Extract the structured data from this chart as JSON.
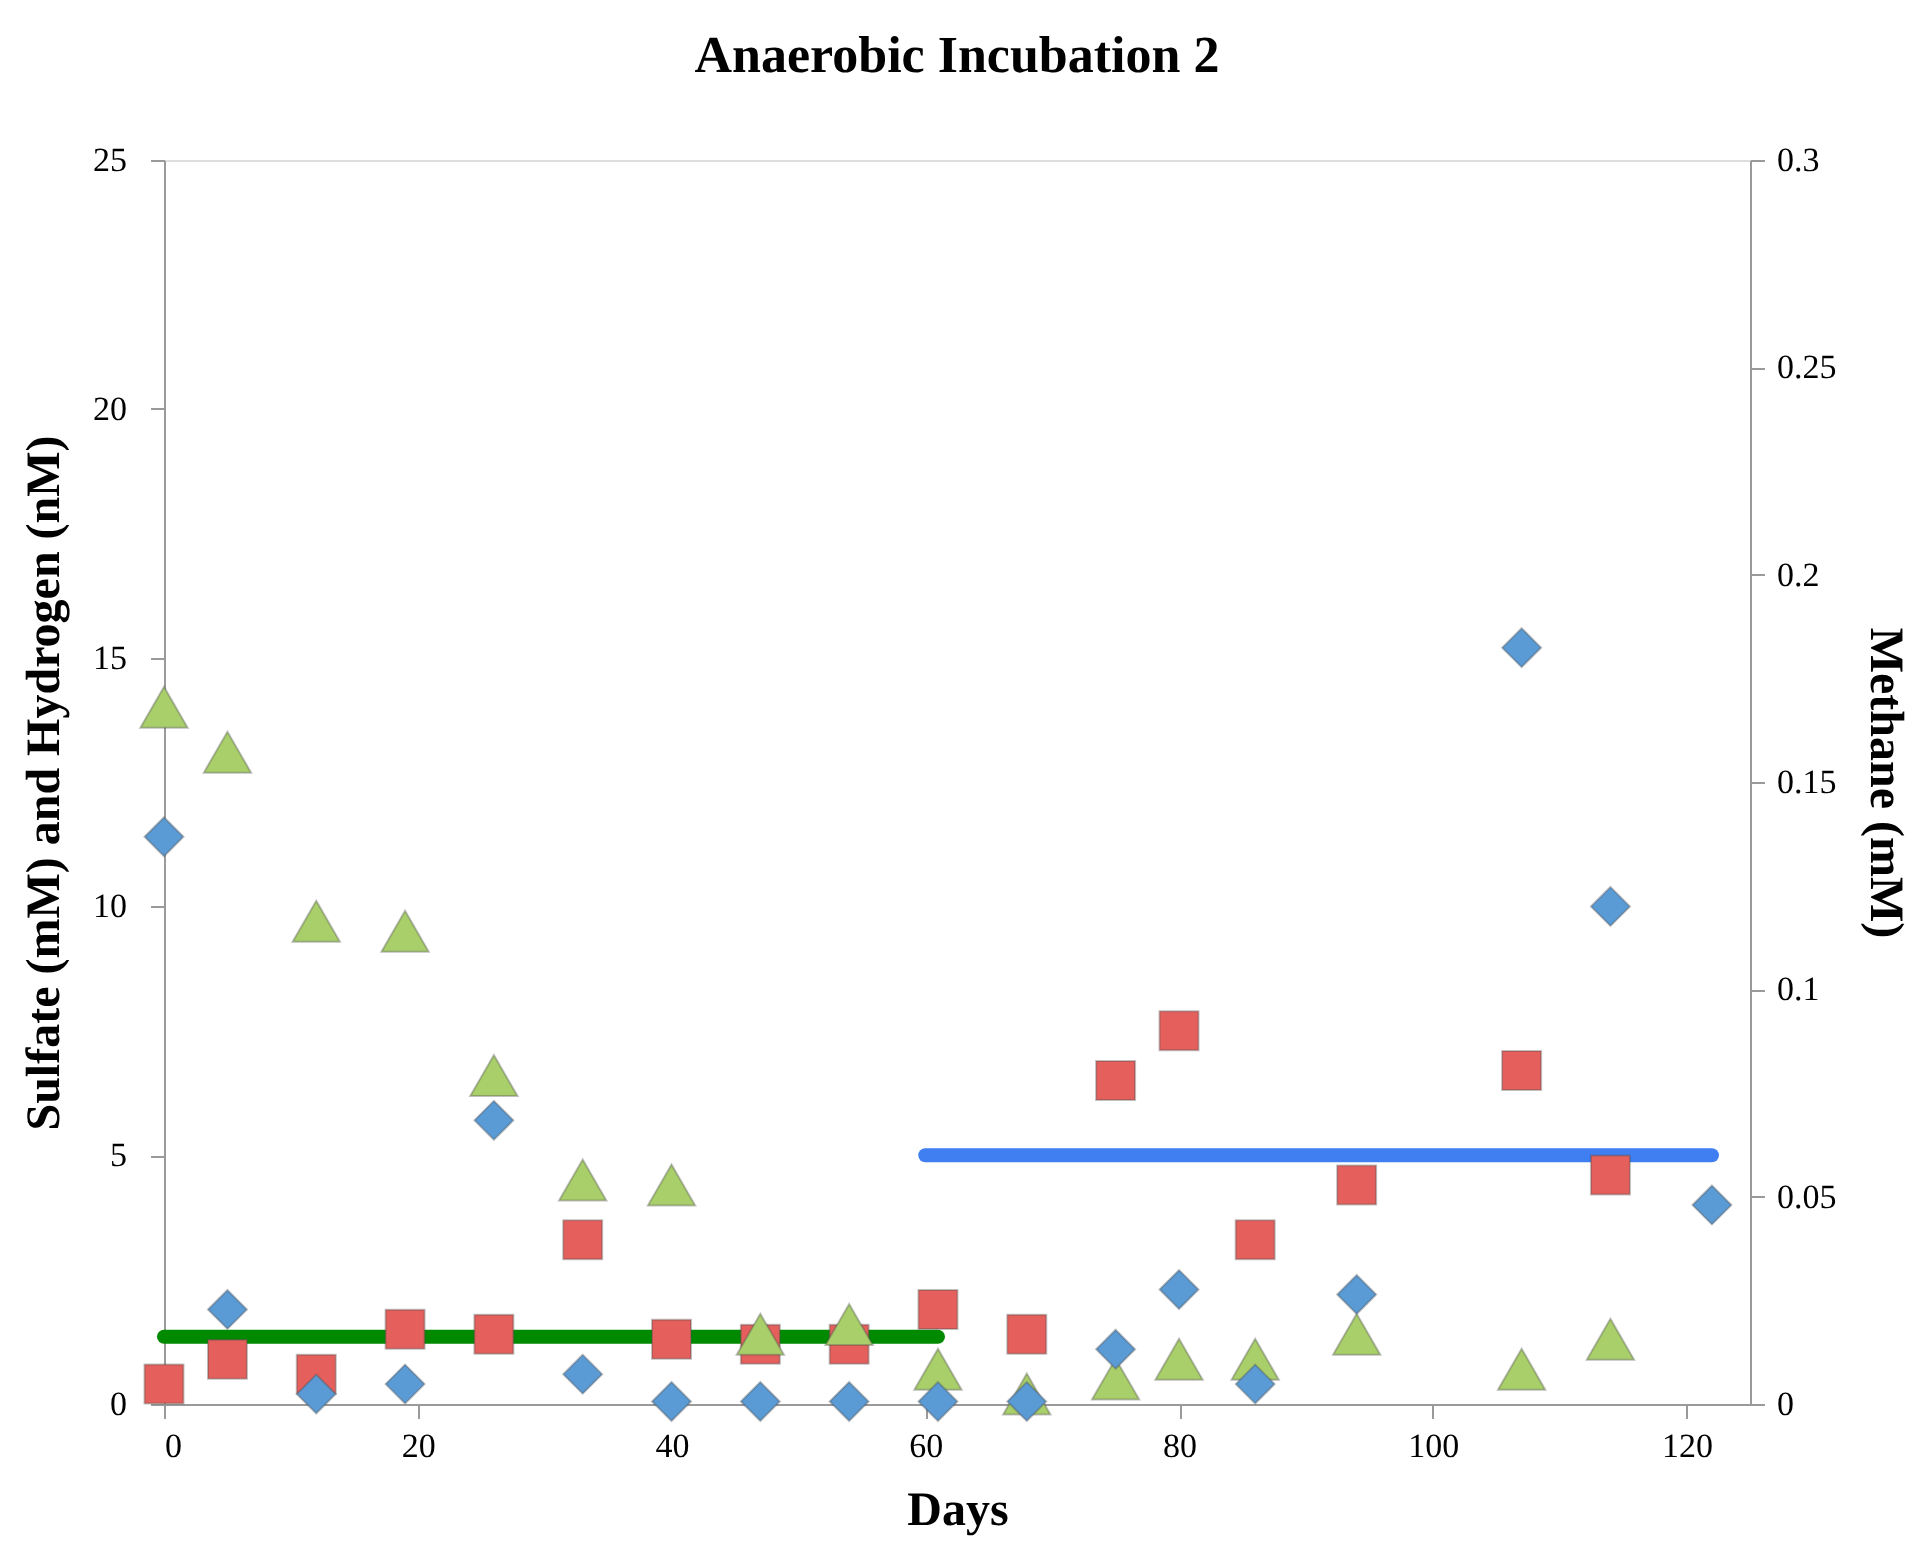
{
  "chart_data": {
    "type": "scatter",
    "title": "Anaerobic Incubation 2",
    "xlabel": "Days",
    "ylabel": "Sulfate (mM) and Hydrogen (nM)",
    "y2label": "Methane (mM)",
    "x": [
      0,
      5,
      12,
      19,
      26,
      33,
      40,
      47,
      54,
      61,
      68,
      75,
      80,
      86,
      94,
      107,
      114,
      122
    ],
    "series": [
      {
        "type": "line",
        "color": "#008a00",
        "x": [
          0,
          61
        ],
        "values": [
          1.35,
          1.35
        ]
      },
      {
        "type": "line",
        "color": "#3f7ff2",
        "x": [
          60,
          122
        ],
        "values": [
          5.0,
          5.0
        ]
      },
      {
        "marker": "square",
        "color": "#e5605c",
        "values": [
          0.4,
          0.9,
          0.6,
          1.5,
          1.4,
          3.3,
          1.3,
          1.2,
          1.2,
          1.9,
          1.4,
          6.5,
          7.5,
          3.3,
          4.4,
          6.7,
          4.6,
          null
        ]
      },
      {
        "marker": "triangle",
        "color": "#a9cf6b",
        "values": [
          14.0,
          13.1,
          9.7,
          9.5,
          6.6,
          4.5,
          4.4,
          1.4,
          1.6,
          0.7,
          0.2,
          0.5,
          0.9,
          0.9,
          1.4,
          0.7,
          1.3,
          null
        ]
      },
      {
        "marker": "diamond",
        "color": "#5b9bd5",
        "values": [
          11.4,
          1.9,
          0.2,
          0.4,
          5.7,
          0.6,
          0.05,
          0.05,
          0.05,
          0.05,
          0.05,
          1.1,
          2.3,
          0.4,
          2.2,
          15.2,
          10.0,
          4.0
        ]
      }
    ],
    "xlim": [
      0,
      125
    ],
    "xticks": [
      0,
      20,
      40,
      60,
      80,
      100,
      120
    ],
    "ylim": [
      0,
      25
    ],
    "yticks": [
      0,
      5,
      10,
      15,
      20,
      25
    ],
    "y2lim": [
      0,
      0.3
    ],
    "y2ticks": [
      0,
      0.05,
      0.1,
      0.15,
      0.2,
      0.25,
      0.3
    ],
    "line_style": "solid",
    "grid": false
  }
}
